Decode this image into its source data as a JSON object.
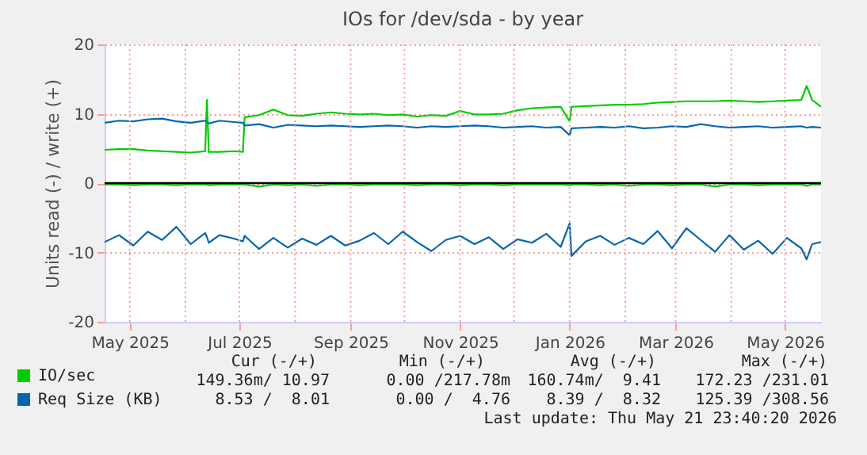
{
  "chart_data": {
    "type": "line",
    "title": "IOs for /dev/sda - by year",
    "ylabel": "Units read (-) / write (+)",
    "x": [
      "2025-04-17",
      "2025-04-25",
      "2025-05-03",
      "2025-05-11",
      "2025-05-19",
      "2025-05-27",
      "2025-06-04",
      "2025-06-12",
      "2025-06-13",
      "2025-06-14",
      "2025-06-20",
      "2025-06-28",
      "2025-07-03",
      "2025-07-04",
      "2025-07-12",
      "2025-07-20",
      "2025-07-28",
      "2025-08-05",
      "2025-08-13",
      "2025-08-21",
      "2025-08-29",
      "2025-09-06",
      "2025-09-14",
      "2025-09-22",
      "2025-09-30",
      "2025-10-08",
      "2025-10-16",
      "2025-10-24",
      "2025-11-01",
      "2025-11-09",
      "2025-11-17",
      "2025-11-25",
      "2025-12-03",
      "2025-12-11",
      "2025-12-19",
      "2025-12-27",
      "2026-01-01",
      "2026-01-02",
      "2026-01-10",
      "2026-01-18",
      "2026-01-26",
      "2026-02-03",
      "2026-02-11",
      "2026-02-19",
      "2026-02-27",
      "2026-03-07",
      "2026-03-15",
      "2026-03-23",
      "2026-03-31",
      "2026-04-08",
      "2026-04-16",
      "2026-04-24",
      "2026-05-02",
      "2026-05-10",
      "2026-05-13",
      "2026-05-16",
      "2026-05-21"
    ],
    "series": [
      {
        "name": "IO/sec",
        "color": "#00cc00",
        "values": [
          4.8,
          4.9,
          4.9,
          4.7,
          4.6,
          4.5,
          4.4,
          4.6,
          12.0,
          4.5,
          4.5,
          4.6,
          4.5,
          9.5,
          9.8,
          10.6,
          9.8,
          9.7,
          10.0,
          10.2,
          10.0,
          9.9,
          10.0,
          9.8,
          9.9,
          9.6,
          9.8,
          9.7,
          10.4,
          9.9,
          9.9,
          10.0,
          10.5,
          10.8,
          10.9,
          11.0,
          8.9,
          11.0,
          11.1,
          11.2,
          11.3,
          11.3,
          11.4,
          11.6,
          11.7,
          11.8,
          11.8,
          11.8,
          11.9,
          11.8,
          11.7,
          11.8,
          11.9,
          12.0,
          14.0,
          12.0,
          11.0
        ]
      },
      {
        "color": "#00cc00",
        "values": [
          -0.2,
          -0.2,
          -0.3,
          -0.2,
          -0.2,
          -0.3,
          -0.2,
          -0.2,
          -0.2,
          -0.3,
          -0.2,
          -0.2,
          -0.2,
          -0.2,
          -0.5,
          -0.2,
          -0.3,
          -0.2,
          -0.4,
          -0.2,
          -0.2,
          -0.3,
          -0.2,
          -0.2,
          -0.2,
          -0.3,
          -0.2,
          -0.2,
          -0.3,
          -0.2,
          -0.2,
          -0.3,
          -0.2,
          -0.2,
          -0.2,
          -0.2,
          -0.3,
          -0.2,
          -0.2,
          -0.3,
          -0.2,
          -0.4,
          -0.2,
          -0.2,
          -0.3,
          -0.2,
          -0.2,
          -0.5,
          -0.2,
          -0.2,
          -0.3,
          -0.2,
          -0.2,
          -0.2,
          -0.4,
          -0.2,
          -0.2
        ]
      },
      {
        "name": "Req Size (KB)",
        "color": "#0066b3",
        "values": [
          8.7,
          9.0,
          8.9,
          9.2,
          9.3,
          8.9,
          8.7,
          9.0,
          8.8,
          8.6,
          9.0,
          8.8,
          8.7,
          8.3,
          8.5,
          8.0,
          8.4,
          8.3,
          8.2,
          8.3,
          8.2,
          8.1,
          8.2,
          8.3,
          8.2,
          8.0,
          8.2,
          8.1,
          8.2,
          8.3,
          8.2,
          8.0,
          8.1,
          8.2,
          8.0,
          8.1,
          6.9,
          7.9,
          8.0,
          8.1,
          8.0,
          8.2,
          7.9,
          8.0,
          8.2,
          8.1,
          8.5,
          8.2,
          8.0,
          8.1,
          8.2,
          8.0,
          8.1,
          8.2,
          8.0,
          8.1,
          8.0
        ]
      },
      {
        "color": "#0066b3",
        "values": [
          -8.5,
          -7.5,
          -9.0,
          -7.0,
          -8.2,
          -6.3,
          -8.8,
          -7.2,
          -7.8,
          -8.6,
          -7.5,
          -8.0,
          -8.4,
          -7.6,
          -9.5,
          -7.9,
          -9.3,
          -8.0,
          -8.9,
          -7.6,
          -9.0,
          -8.3,
          -7.2,
          -8.8,
          -7.0,
          -8.5,
          -9.8,
          -8.2,
          -7.6,
          -8.8,
          -7.8,
          -9.5,
          -8.1,
          -8.6,
          -7.3,
          -9.2,
          -5.8,
          -10.5,
          -8.4,
          -7.6,
          -8.9,
          -7.9,
          -8.8,
          -6.9,
          -9.4,
          -6.5,
          -8.2,
          -9.9,
          -7.5,
          -9.6,
          -8.3,
          -10.2,
          -7.9,
          -9.4,
          -11.0,
          -8.8,
          -8.5
        ]
      }
    ],
    "xlim": [
      "2025-04-17",
      "2026-05-21"
    ],
    "xticks": [
      {
        "value": "2025-05-01",
        "label": "May 2025"
      },
      {
        "value": "2025-06-01",
        "label": null
      },
      {
        "value": "2025-07-01",
        "label": "Jul 2025"
      },
      {
        "value": "2025-08-01",
        "label": null
      },
      {
        "value": "2025-09-01",
        "label": "Sep 2025"
      },
      {
        "value": "2025-10-01",
        "label": null
      },
      {
        "value": "2025-11-01",
        "label": "Nov 2025"
      },
      {
        "value": "2025-12-01",
        "label": null
      },
      {
        "value": "2026-01-01",
        "label": "Jan 2026"
      },
      {
        "value": "2026-02-01",
        "label": null
      },
      {
        "value": "2026-03-01",
        "label": "Mar 2026"
      },
      {
        "value": "2026-04-01",
        "label": null
      },
      {
        "value": "2026-05-01",
        "label": "May 2026"
      }
    ],
    "ylim": [
      -20,
      20
    ],
    "yticks": [
      -20,
      -10,
      0,
      10,
      20
    ],
    "ref_lines": [
      {
        "axis": "y",
        "value": 0,
        "color": "#000000"
      }
    ],
    "grid": true,
    "legend": "bottom left",
    "annotations": [
      "Cur (-/+)",
      "Min (-/+)",
      "Avg (-/+)",
      "Max (-/+)",
      "149.36m/ 10.97",
      "0.00 /217.78m",
      "160.74m/  9.41",
      "172.23 /231.01",
      "8.53 /  8.01",
      "0.00 /  4.76",
      "8.39 /  8.32",
      "125.39 /308.56",
      "Last update: Thu May 21 23:40:20 2026"
    ]
  }
}
